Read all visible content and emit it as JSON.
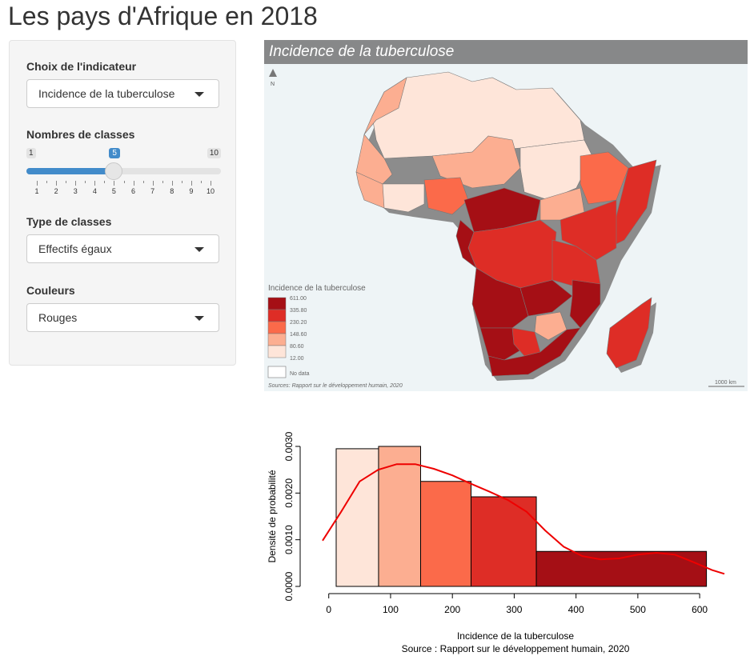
{
  "page_title": "Les pays d'Afrique en 2018",
  "sidebar": {
    "indicator": {
      "label": "Choix de l'indicateur",
      "value": "Incidence de la tuberculose"
    },
    "classes": {
      "label": "Nombres de classes",
      "min": "1",
      "max": "10",
      "value": "5",
      "value_fraction": 0.444,
      "ticks": [
        "1",
        "2",
        "3",
        "4",
        "5",
        "6",
        "7",
        "8",
        "9",
        "10"
      ]
    },
    "class_type": {
      "label": "Type de classes",
      "value": "Effectifs égaux"
    },
    "colors": {
      "label": "Couleurs",
      "value": "Rouges"
    }
  },
  "map": {
    "title": "Incidence de la tuberculose",
    "north": "N",
    "legend_title": "Incidence de la tuberculose",
    "legend_breaks": [
      "611.00",
      "335.80",
      "230.20",
      "148.60",
      "80.60",
      "12.00"
    ],
    "legend_colors": [
      "#a50f15",
      "#de2d26",
      "#fb6a4a",
      "#fcae91",
      "#fee5d9"
    ],
    "no_data": "No data",
    "source": "Sources: Rapport sur le développement humain, 2020",
    "scale": "1000 km"
  },
  "chart_data": {
    "type": "bar",
    "xlabel": "Incidence de la tuberculose",
    "ylabel": "Densité de probabilité",
    "caption": "Source : Rapport sur le développement humain, 2020",
    "xlim": [
      -10,
      640
    ],
    "ylim": [
      0,
      0.003
    ],
    "x_ticks": [
      "0",
      "100",
      "200",
      "300",
      "400",
      "500",
      "600"
    ],
    "y_ticks": [
      "0.0000",
      "0.0010",
      "0.0020",
      "0.0030"
    ],
    "bins": [
      {
        "from": 12,
        "to": 80.6,
        "density": 0.00295,
        "color": "#fee5d9"
      },
      {
        "from": 80.6,
        "to": 148.6,
        "density": 0.003,
        "color": "#fcae91"
      },
      {
        "from": 148.6,
        "to": 230.2,
        "density": 0.00225,
        "color": "#fb6a4a"
      },
      {
        "from": 230.2,
        "to": 335.8,
        "density": 0.00192,
        "color": "#de2d26"
      },
      {
        "from": 335.8,
        "to": 611,
        "density": 0.00075,
        "color": "#a50f15"
      }
    ],
    "density_curve": {
      "color": "#ee0000",
      "x": [
        -10,
        20,
        50,
        80,
        110,
        140,
        170,
        200,
        230,
        260,
        290,
        320,
        350,
        380,
        410,
        440,
        470,
        500,
        530,
        560,
        590,
        620,
        640
      ],
      "y": [
        0.00098,
        0.0016,
        0.00225,
        0.0025,
        0.00262,
        0.00262,
        0.00252,
        0.00238,
        0.0022,
        0.00203,
        0.00185,
        0.0016,
        0.0012,
        0.00085,
        0.00065,
        0.00058,
        0.0006,
        0.00068,
        0.00072,
        0.00068,
        0.00052,
        0.00035,
        0.00027
      ]
    }
  }
}
